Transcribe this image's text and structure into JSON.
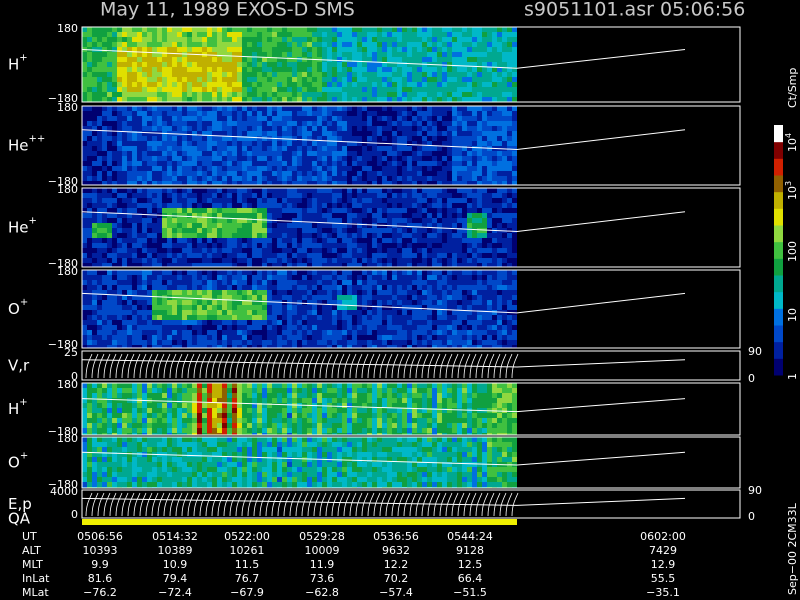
{
  "header": {
    "title": "May 11, 1989   EXOS-D SMS",
    "file": "s9051101.asr",
    "time": "05:06:56"
  },
  "panels": [
    {
      "name": "H",
      "sup": "+",
      "top": "180",
      "bottom": "−180"
    },
    {
      "name": "He",
      "sup": "++",
      "top": "180",
      "bottom": "−180"
    },
    {
      "name": "He",
      "sup": "+",
      "top": "180",
      "bottom": "−180"
    },
    {
      "name": "O",
      "sup": "+",
      "top": "180",
      "bottom": "−180"
    },
    {
      "name": "V,r",
      "top": "25",
      "bottom": "0",
      "right_top": "90",
      "right_bottom": "0"
    },
    {
      "name": "H",
      "sup": "+",
      "top": "180",
      "bottom": "−180"
    },
    {
      "name": "O",
      "sup": "+",
      "top": "180",
      "bottom": "−180"
    },
    {
      "name": "E,p",
      "top": "4000",
      "bottom": "0",
      "right_top": "90",
      "right_bottom": "0"
    }
  ],
  "qa_label": "QA",
  "colorbar": {
    "unit": "Ct/Smp",
    "labels": [
      {
        "base": "10",
        "exp": "4"
      },
      {
        "base": "10",
        "exp": "3"
      },
      {
        "base": "100"
      },
      {
        "base": "10"
      },
      {
        "base": "1"
      }
    ]
  },
  "table": {
    "row_labels": [
      "UT",
      "ALT",
      "MLT",
      "InLat",
      "MLat"
    ],
    "rows": [
      [
        "0506:56",
        "0514:32",
        "0522:00",
        "0529:28",
        "0536:56",
        "0544:24",
        "0602:00"
      ],
      [
        "10393",
        "10389",
        "10261",
        "10009",
        "9632",
        "9128",
        "7429"
      ],
      [
        "9.9",
        "10.9",
        "11.5",
        "11.9",
        "12.2",
        "12.5",
        "12.9"
      ],
      [
        "81.6",
        "79.4",
        "76.7",
        "73.6",
        "70.2",
        "66.4",
        "55.5"
      ],
      [
        "−76.2",
        "−72.4",
        "−67.9",
        "−62.8",
        "−57.4",
        "−51.5",
        "−35.1"
      ]
    ]
  },
  "side_label": "Sep−00 2CM33L"
}
